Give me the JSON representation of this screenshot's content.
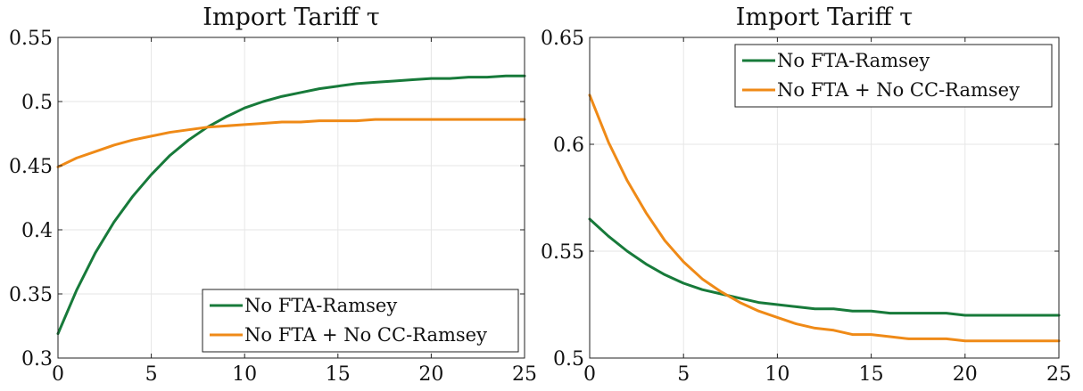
{
  "chart_data": [
    {
      "type": "line",
      "title": "Import Tariff τ",
      "xlabel": "",
      "ylabel": "",
      "xlim": [
        0,
        25
      ],
      "ylim": [
        0.3,
        0.55
      ],
      "xticks": [
        0,
        5,
        10,
        15,
        20,
        25
      ],
      "xtick_labels": [
        "0",
        "5",
        "10",
        "15",
        "20",
        "25"
      ],
      "yticks": [
        0.3,
        0.35,
        0.4,
        0.45,
        0.5,
        0.55
      ],
      "ytick_labels": [
        "0.3",
        "0.35",
        "0.4",
        "0.45",
        "0.5",
        "0.55"
      ],
      "grid": true,
      "legend_position": "bottom-right",
      "x": [
        0,
        1,
        2,
        3,
        4,
        5,
        6,
        7,
        8,
        9,
        10,
        11,
        12,
        13,
        14,
        15,
        16,
        17,
        18,
        19,
        20,
        21,
        22,
        23,
        24,
        25
      ],
      "series": [
        {
          "name": "No FTA-Ramsey",
          "color": "#177a3a",
          "values": [
            0.319,
            0.353,
            0.382,
            0.406,
            0.426,
            0.443,
            0.458,
            0.47,
            0.48,
            0.488,
            0.495,
            0.5,
            0.504,
            0.507,
            0.51,
            0.512,
            0.514,
            0.515,
            0.516,
            0.517,
            0.518,
            0.518,
            0.519,
            0.519,
            0.52,
            0.52
          ]
        },
        {
          "name": "No FTA + No CC-Ramsey",
          "color": "#ef8a17",
          "values": [
            0.449,
            0.456,
            0.461,
            0.466,
            0.47,
            0.473,
            0.476,
            0.478,
            0.48,
            0.481,
            0.482,
            0.483,
            0.484,
            0.484,
            0.485,
            0.485,
            0.485,
            0.486,
            0.486,
            0.486,
            0.486,
            0.486,
            0.486,
            0.486,
            0.486,
            0.486
          ]
        }
      ]
    },
    {
      "type": "line",
      "title": "Import Tariff τ",
      "xlabel": "",
      "ylabel": "",
      "xlim": [
        0,
        25
      ],
      "ylim": [
        0.5,
        0.65
      ],
      "xticks": [
        0,
        5,
        10,
        15,
        20,
        25
      ],
      "xtick_labels": [
        "0",
        "5",
        "10",
        "15",
        "20",
        "25"
      ],
      "yticks": [
        0.5,
        0.55,
        0.6,
        0.65
      ],
      "ytick_labels": [
        "0.5",
        "0.55",
        "0.6",
        "0.65"
      ],
      "grid": true,
      "legend_position": "top-right",
      "x": [
        0,
        1,
        2,
        3,
        4,
        5,
        6,
        7,
        8,
        9,
        10,
        11,
        12,
        13,
        14,
        15,
        16,
        17,
        18,
        19,
        20,
        21,
        22,
        23,
        24,
        25
      ],
      "series": [
        {
          "name": "No FTA-Ramsey",
          "color": "#177a3a",
          "values": [
            0.565,
            0.557,
            0.55,
            0.544,
            0.539,
            0.535,
            0.532,
            0.53,
            0.528,
            0.526,
            0.525,
            0.524,
            0.523,
            0.523,
            0.522,
            0.522,
            0.521,
            0.521,
            0.521,
            0.521,
            0.52,
            0.52,
            0.52,
            0.52,
            0.52,
            0.52
          ]
        },
        {
          "name": "No FTA + No CC-Ramsey",
          "color": "#ef8a17",
          "values": [
            0.623,
            0.601,
            0.583,
            0.568,
            0.555,
            0.545,
            0.537,
            0.531,
            0.526,
            0.522,
            0.519,
            0.516,
            0.514,
            0.513,
            0.511,
            0.511,
            0.51,
            0.509,
            0.509,
            0.509,
            0.508,
            0.508,
            0.508,
            0.508,
            0.508,
            0.508
          ]
        }
      ]
    }
  ]
}
